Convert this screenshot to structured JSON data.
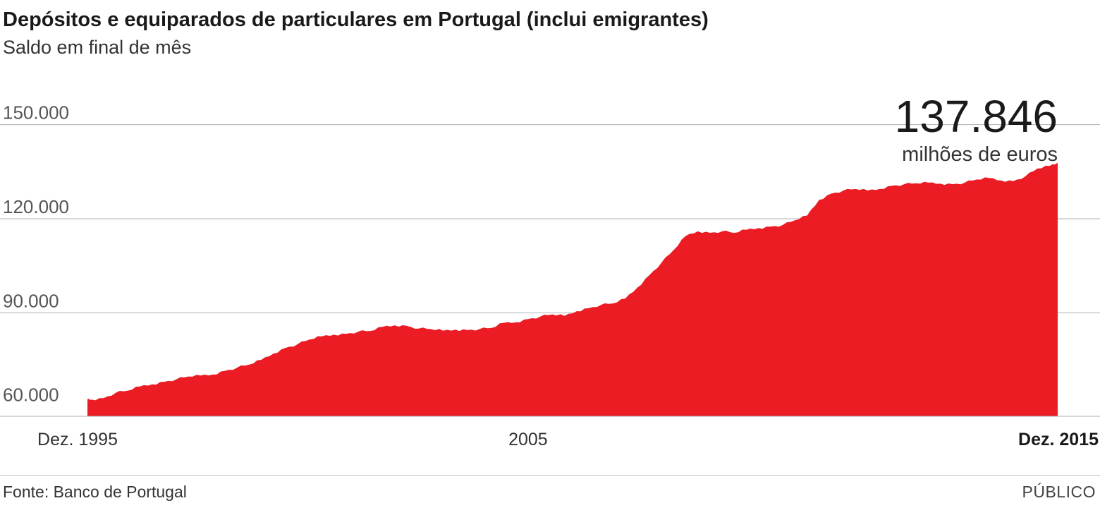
{
  "colors": {
    "area": "#ec1c24",
    "grid": "#b0b0b0",
    "text": "#1a1a1a"
  },
  "footer": {
    "source": "Fonte: Banco de Portugal",
    "brand": "PÚBLICO"
  },
  "chart_data": {
    "type": "area",
    "title": "Depósitos e equiparados de particulares em Portugal (inclui emigrantes)",
    "subtitle": "Saldo em final de mês",
    "ylim": [
      57000,
      150000
    ],
    "y_ticks": [
      60000,
      90000,
      120000,
      150000
    ],
    "y_tick_labels": [
      "60.000",
      "90.000",
      "120.000",
      "150.000"
    ],
    "x_ticks": [
      1995.917,
      2005,
      2015.917
    ],
    "x_tick_labels": [
      "Dez. 1995",
      "2005",
      "Dez. 2015"
    ],
    "grid": true,
    "callout": {
      "value": "137.846",
      "unit": "milhões de euros"
    },
    "series": [
      {
        "x": [
          1995.917,
          1996,
          1996.25,
          1996.5,
          1996.75,
          1997,
          1997.25,
          1997.5,
          1997.75,
          1998,
          1998.25,
          1998.5,
          1998.75,
          1999,
          1999.25,
          1999.5,
          1999.75,
          2000,
          2000.25,
          2000.5,
          2000.75,
          2001,
          2001.25,
          2001.5,
          2001.75,
          2002,
          2002.25,
          2002.5,
          2002.75,
          2003,
          2003.25,
          2003.5,
          2003.75,
          2004,
          2004.25,
          2004.5,
          2004.75,
          2005,
          2005.25,
          2005.5,
          2005.75,
          2006,
          2006.25,
          2006.5,
          2006.75,
          2007,
          2007.25,
          2007.5,
          2007.75,
          2008,
          2008.25,
          2008.5,
          2008.75,
          2009,
          2009.25,
          2009.5,
          2009.75,
          2010,
          2010.25,
          2010.5,
          2010.75,
          2011,
          2011.25,
          2011.5,
          2011.75,
          2012,
          2012.25,
          2012.5,
          2012.75,
          2013,
          2013.25,
          2013.5,
          2013.75,
          2014,
          2014.25,
          2014.5,
          2014.75,
          2015,
          2015.25,
          2015.5,
          2015.75,
          2015.917
        ],
        "values": [
          62500,
          62300,
          62800,
          64500,
          65200,
          66500,
          67200,
          68000,
          68800,
          69700,
          70000,
          70300,
          71500,
          72500,
          73500,
          75000,
          77000,
          78800,
          80000,
          81500,
          82500,
          83000,
          83300,
          84000,
          84200,
          85500,
          86000,
          85800,
          85000,
          84800,
          84300,
          84600,
          84500,
          84800,
          85200,
          86800,
          87000,
          88000,
          88800,
          89500,
          89000,
          90500,
          91500,
          92500,
          93000,
          94500,
          98000,
          102000,
          106000,
          110000,
          114500,
          116000,
          115500,
          116000,
          115500,
          116500,
          117000,
          117500,
          118000,
          119500,
          121000,
          126000,
          128000,
          129000,
          129500,
          129000,
          129500,
          130500,
          131000,
          131300,
          131500,
          131200,
          131000,
          131500,
          132500,
          133000,
          132200,
          132000,
          133500,
          136000,
          136800,
          137846
        ]
      }
    ]
  }
}
